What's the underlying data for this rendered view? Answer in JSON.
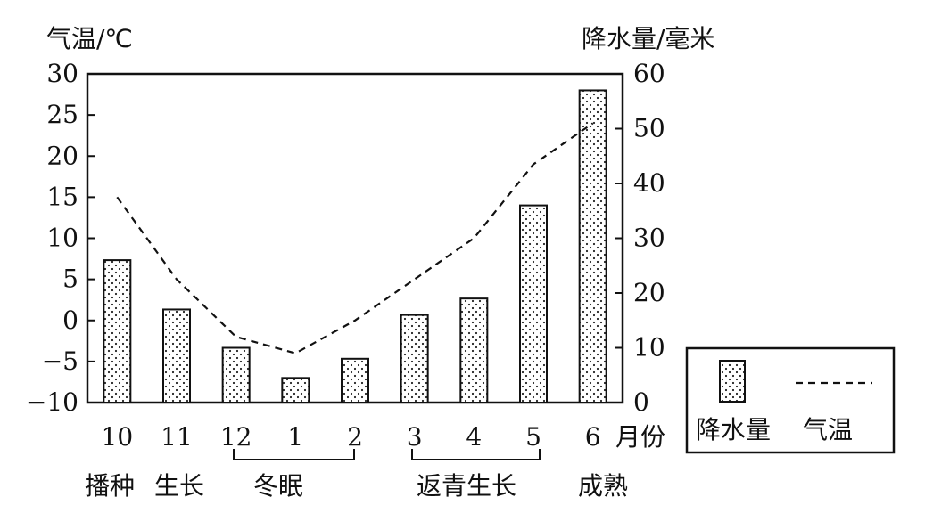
{
  "chart_data": {
    "type": "bar+line",
    "categories": [
      "10",
      "11",
      "12",
      "1",
      "2",
      "3",
      "4",
      "5",
      "6"
    ],
    "x_unit_label": "月份",
    "series": [
      {
        "name": "降水量",
        "kind": "bar",
        "axis": "right",
        "values": [
          26,
          17,
          10,
          4.5,
          8,
          16,
          19,
          36,
          57
        ]
      },
      {
        "name": "气温",
        "kind": "line",
        "axis": "left",
        "style": "dashed",
        "values": [
          15,
          5,
          -2,
          -4,
          0,
          5,
          10,
          19,
          24
        ]
      }
    ],
    "y_left": {
      "label": "气温/℃",
      "ticks": [
        "30",
        "25",
        "20",
        "15",
        "10",
        "5",
        "0",
        "−5",
        "−10"
      ],
      "ylim": [
        -10,
        30
      ]
    },
    "y_right": {
      "label": "降水量/毫米",
      "ticks": [
        "60",
        "50",
        "40",
        "30",
        "20",
        "10",
        "0"
      ],
      "ylim": [
        0,
        60
      ]
    },
    "stages": [
      {
        "label": "播种"
      },
      {
        "label": "生长"
      },
      {
        "label": "冬眠"
      },
      {
        "label": "返青生长"
      },
      {
        "label": "成熟"
      }
    ],
    "legend": {
      "placement": "right",
      "bar_label": "降水量",
      "line_label": "气温"
    },
    "colors": {
      "ink": "#111111",
      "bar_fill": "#ffffff",
      "dot": "#222222"
    }
  }
}
